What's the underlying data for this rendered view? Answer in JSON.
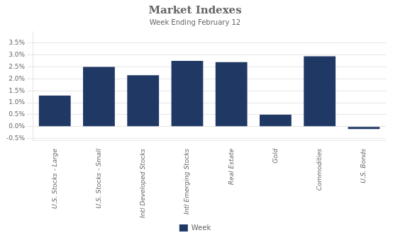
{
  "chart_data": {
    "type": "bar",
    "title": "Market Indexes",
    "subtitle": "Week Ending February 12",
    "categories": [
      "U.S. Stocks - Large",
      "U.S. Stocks - Small",
      "Intl Developed Stocks",
      "Intl Emerging Stocks",
      "Real Estate",
      "Gold",
      "Commodities",
      "U.S. Bonds"
    ],
    "series": [
      {
        "name": "Week",
        "color": "#1F3864",
        "values": [
          0.013,
          0.025,
          0.0215,
          0.0275,
          0.027,
          0.005,
          0.0295,
          -0.001
        ]
      }
    ],
    "ylim": [
      -0.006,
      0.04
    ],
    "yticks": [
      {
        "value": -0.005,
        "label": "-0.5%"
      },
      {
        "value": 0.0,
        "label": "0.0%"
      },
      {
        "value": 0.005,
        "label": "0.5%"
      },
      {
        "value": 0.01,
        "label": "1.0%"
      },
      {
        "value": 0.015,
        "label": "1.5%"
      },
      {
        "value": 0.02,
        "label": "2.0%"
      },
      {
        "value": 0.025,
        "label": "2.5%"
      },
      {
        "value": 0.03,
        "label": "3.0%"
      },
      {
        "value": 0.035,
        "label": "3.5%"
      }
    ],
    "grid": true,
    "legend": "bottom"
  }
}
